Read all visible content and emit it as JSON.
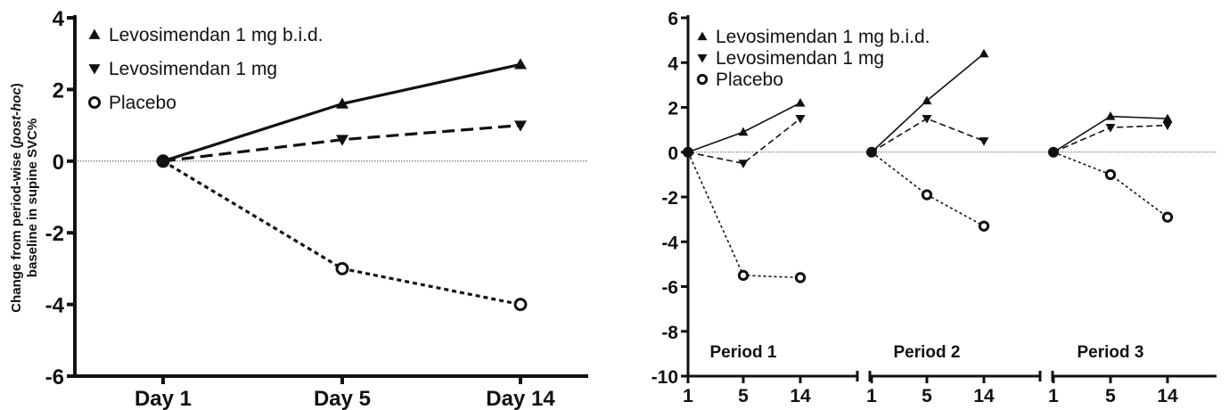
{
  "chart_data": [
    {
      "type": "line",
      "ylabel_line1_pre": "Change from period-wise (",
      "ylabel_line1_em": "post-hoc",
      "ylabel_line1_post": ")",
      "ylabel_line2": "baseline in supine SVC%",
      "ylim": [
        -6,
        4
      ],
      "yticks": [
        4,
        2,
        0,
        -2,
        -4,
        -6
      ],
      "categories": [
        "Day 1",
        "Day 5",
        "Day 14"
      ],
      "reference_line_y": 0,
      "legend_placement": "top-left",
      "series": [
        {
          "name": "Levosimendan 1 mg b.i.d.",
          "marker": "triangle-up",
          "style": "solid",
          "values": [
            0,
            1.6,
            2.7
          ]
        },
        {
          "name": "Levosimendan 1 mg",
          "marker": "triangle-down",
          "style": "dashed",
          "values": [
            0,
            0.6,
            1.0
          ]
        },
        {
          "name": "Placebo",
          "marker": "circle-open",
          "style": "dotted",
          "values": [
            0,
            -3.0,
            -4.0
          ]
        }
      ]
    },
    {
      "type": "line",
      "ylim": [
        -10,
        6
      ],
      "yticks": [
        6,
        4,
        2,
        0,
        -2,
        -4,
        -6,
        -8,
        -10
      ],
      "reference_line_y": 0,
      "legend_placement": "top-left",
      "panels": [
        {
          "label": "Period 1",
          "x": [
            "1",
            "5",
            "14"
          ],
          "series": [
            {
              "name": "Levosimendan 1 mg b.i.d.",
              "values": [
                0,
                0.9,
                2.2
              ]
            },
            {
              "name": "Levosimendan 1 mg",
              "values": [
                0,
                -0.5,
                1.5
              ]
            },
            {
              "name": "Placebo",
              "values": [
                0,
                -5.5,
                -5.6
              ]
            }
          ]
        },
        {
          "label": "Period 2",
          "x": [
            "1",
            "5",
            "14"
          ],
          "series": [
            {
              "name": "Levosimendan 1 mg b.i.d.",
              "values": [
                0,
                2.3,
                4.4
              ]
            },
            {
              "name": "Levosimendan 1 mg",
              "values": [
                0,
                1.5,
                0.5
              ]
            },
            {
              "name": "Placebo",
              "values": [
                0,
                -1.9,
                -3.3
              ]
            }
          ]
        },
        {
          "label": "Period 3",
          "x": [
            "1",
            "5",
            "14"
          ],
          "series": [
            {
              "name": "Levosimendan 1 mg b.i.d.",
              "values": [
                0,
                1.6,
                1.5
              ]
            },
            {
              "name": "Levosimendan 1 mg",
              "values": [
                0,
                1.1,
                1.2
              ]
            },
            {
              "name": "Placebo",
              "values": [
                0,
                -1.0,
                -2.9
              ]
            }
          ]
        }
      ]
    }
  ]
}
